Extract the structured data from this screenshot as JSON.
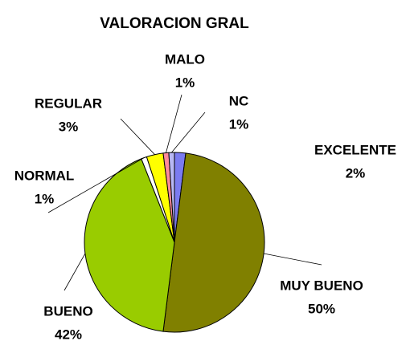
{
  "chart_data": {
    "type": "pie",
    "title": "VALORACION GRAL",
    "categories": [
      "EXCELENTE",
      "MUY BUENO",
      "BUENO",
      "NORMAL",
      "REGULAR",
      "MALO",
      "NC"
    ],
    "values": [
      2,
      50,
      42,
      1,
      3,
      1,
      1
    ],
    "value_labels": [
      "2%",
      "50%",
      "42%",
      "1%",
      "3%",
      "1%",
      "1%"
    ],
    "colors": [
      "#7b7bf0",
      "#808000",
      "#99cc00",
      "#ffffff",
      "#ffff00",
      "#ff8a9a",
      "#b8b8f4"
    ]
  }
}
